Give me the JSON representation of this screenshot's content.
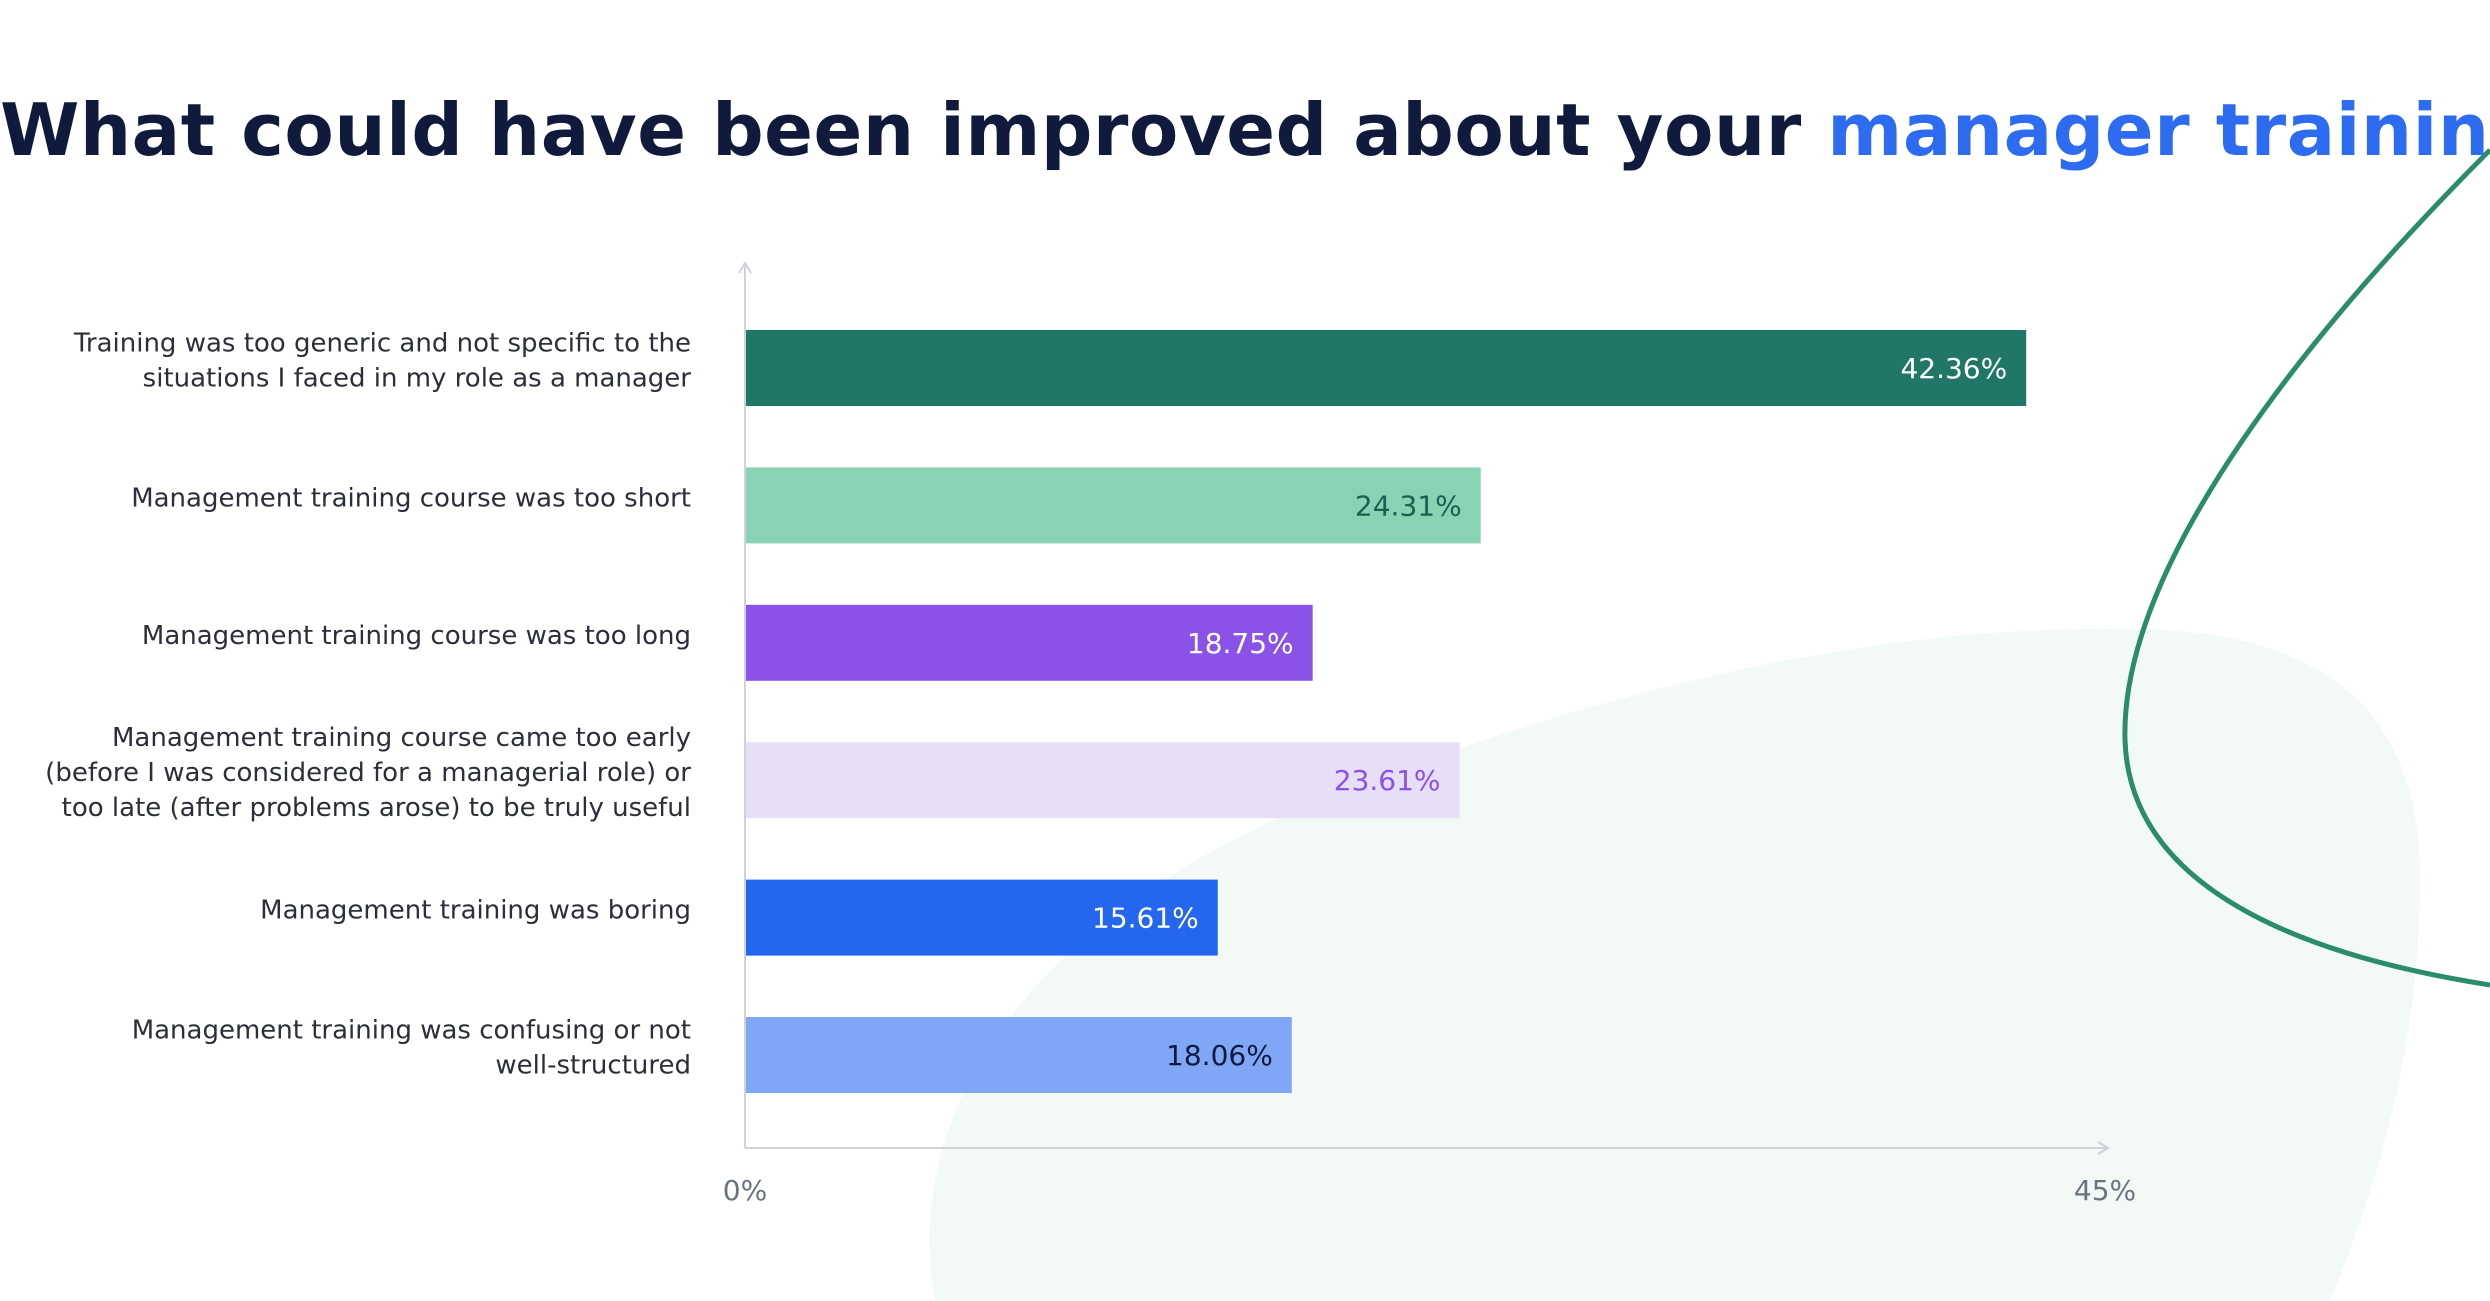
{
  "title": {
    "main": "What could have been improved about your ",
    "accent": "manager training?"
  },
  "colors": {
    "title": "#0f1a3d",
    "accent": "#2d6cf0",
    "curve": "#2a8c6a",
    "blob": "#f3faf5"
  },
  "chart_data": {
    "type": "bar",
    "orientation": "horizontal",
    "categories": [
      [
        "Training was too generic and not specific to the",
        "situations I faced in my role as a manager"
      ],
      [
        "Management training course was too short"
      ],
      [
        "Management training course was too long"
      ],
      [
        "Management training course came too early",
        "(before I was considered for a managerial role) or",
        "too late (after problems arose) to be truly useful"
      ],
      [
        "Management training was boring"
      ],
      [
        "Management training was confusing or not",
        "well-structured"
      ]
    ],
    "values": [
      42.36,
      24.31,
      18.75,
      23.61,
      15.61,
      18.06
    ],
    "value_labels": [
      "42.36%",
      "24.31%",
      "18.75%",
      "23.61%",
      "15.61%",
      "18.06%"
    ],
    "bar_colors": [
      "#217767",
      "#87d3b3",
      "#8a52e6",
      "#e7def8",
      "#2466ee",
      "#7fa7f5"
    ],
    "label_colors": [
      "#ffffff",
      "#1f5e52",
      "#ffffff",
      "#8a52e6",
      "#ffffff",
      "#0f1a3d"
    ],
    "xlim": [
      0,
      45
    ],
    "tick_labels": [
      "0%",
      "45%"
    ],
    "grid": false,
    "legend": "none"
  }
}
